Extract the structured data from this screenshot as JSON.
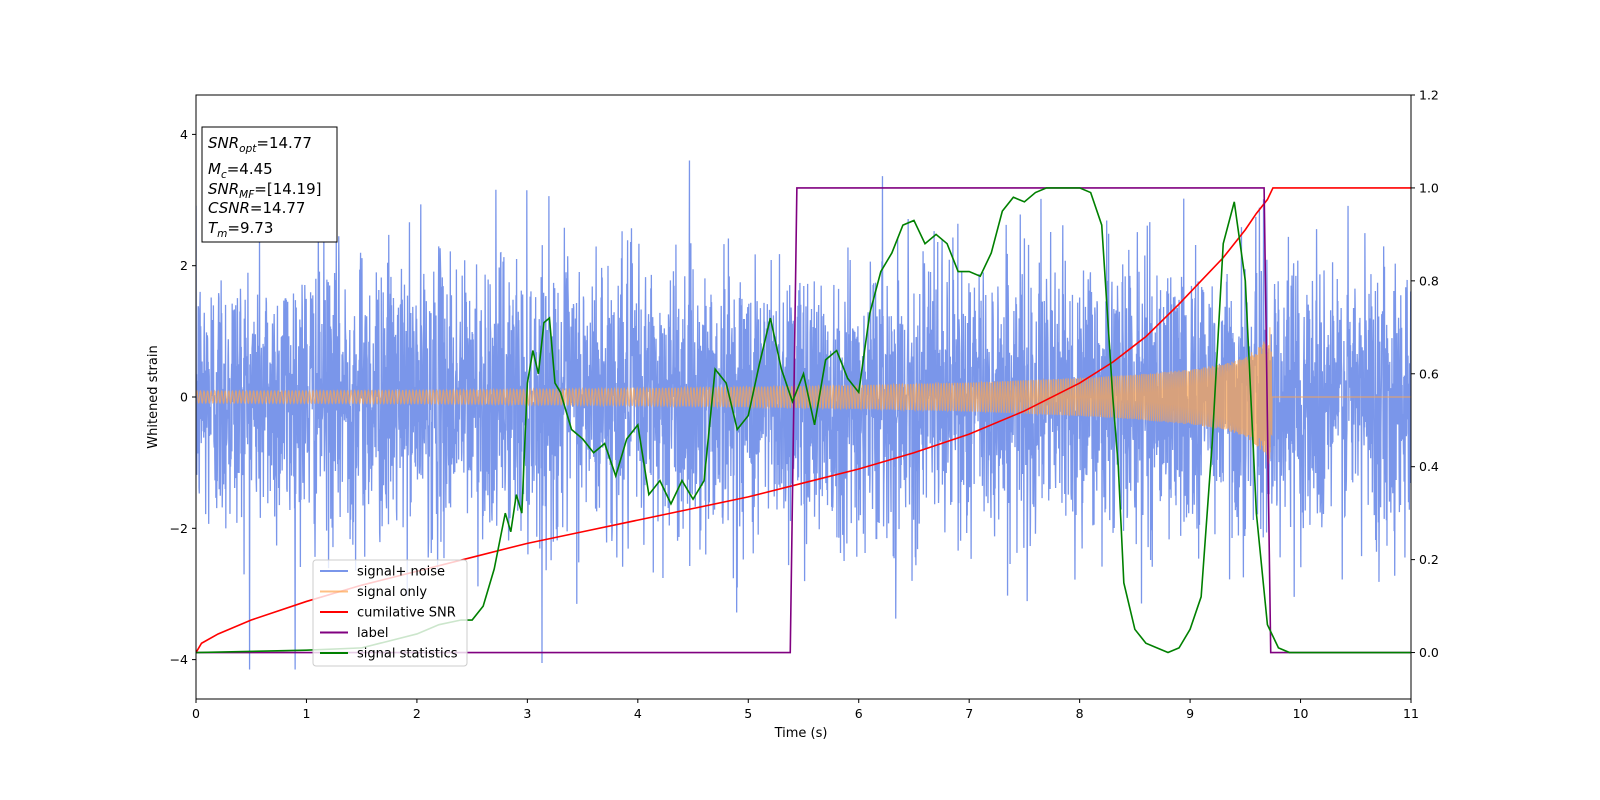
{
  "chart_data": {
    "type": "line",
    "title": "",
    "xlabel": "Time (s)",
    "ylabel": "Whitened strain",
    "y2label": "",
    "xlim": [
      0,
      11
    ],
    "ylim": [
      -4.6,
      4.6
    ],
    "y2lim": [
      -0.1,
      1.2
    ],
    "x_ticks": [
      0,
      1,
      2,
      3,
      4,
      5,
      6,
      7,
      8,
      9,
      10,
      11
    ],
    "y_ticks": [
      -4,
      -2,
      0,
      2,
      4
    ],
    "y2_ticks": [
      "0.0",
      "0.2",
      "0.4",
      "0.6",
      "0.8",
      "1.0",
      "1.2"
    ],
    "grid": false,
    "legend_position": "lower-left",
    "info_box": {
      "snr_opt": {
        "base": "SNR",
        "sub": "opt",
        "value": "=14.77"
      },
      "mc": {
        "base": "M",
        "sub": "c",
        "value": "=4.45"
      },
      "snr_mf": {
        "base": "SNR",
        "sub": "MF",
        "value": "=[14.19]"
      },
      "csnr": {
        "base": "CSNR",
        "value": "=14.77"
      },
      "tm": {
        "base": "T",
        "sub": "m",
        "value": "=9.73"
      }
    },
    "series": [
      {
        "name": "signal+ noise",
        "color": "#4169e1",
        "axis": "left",
        "description_style": "noise_std",
        "noise_std": 1.05,
        "x_range": [
          0,
          11
        ]
      },
      {
        "name": "signal only",
        "color": "#ffa54f",
        "axis": "left",
        "envelope_points": [
          [
            0,
            0.09
          ],
          [
            2,
            0.1
          ],
          [
            4,
            0.13
          ],
          [
            6,
            0.18
          ],
          [
            7,
            0.22
          ],
          [
            8,
            0.29
          ],
          [
            8.5,
            0.34
          ],
          [
            9,
            0.42
          ],
          [
            9.3,
            0.5
          ],
          [
            9.5,
            0.6
          ],
          [
            9.65,
            0.82
          ],
          [
            9.73,
            1.1
          ],
          [
            9.75,
            0
          ],
          [
            11,
            0
          ]
        ]
      },
      {
        "name": "cumilative SNR",
        "color": "#ff0000",
        "axis": "right",
        "x": [
          0,
          0.05,
          0.2,
          0.5,
          1,
          1.5,
          2,
          2.5,
          3,
          3.5,
          4,
          4.5,
          5,
          5.5,
          6,
          6.5,
          7,
          7.5,
          8,
          8.3,
          8.6,
          8.9,
          9.1,
          9.3,
          9.5,
          9.6,
          9.7,
          9.75,
          11
        ],
        "y": [
          0.0,
          0.02,
          0.04,
          0.07,
          0.11,
          0.145,
          0.175,
          0.205,
          0.235,
          0.26,
          0.285,
          0.31,
          0.335,
          0.365,
          0.395,
          0.43,
          0.47,
          0.52,
          0.58,
          0.625,
          0.68,
          0.75,
          0.8,
          0.85,
          0.91,
          0.945,
          0.975,
          1.0,
          1.0
        ]
      },
      {
        "name": "label",
        "color": "#800080",
        "axis": "right",
        "x": [
          0,
          5.38,
          5.44,
          9.67,
          9.73,
          11
        ],
        "y": [
          0,
          0,
          1,
          1,
          0,
          0
        ]
      },
      {
        "name": "signal statistics",
        "color": "#008000",
        "axis": "right",
        "x": [
          0,
          1,
          1.5,
          2,
          2.2,
          2.4,
          2.5,
          2.6,
          2.7,
          2.8,
          2.85,
          2.9,
          2.95,
          3.0,
          3.05,
          3.1,
          3.15,
          3.2,
          3.25,
          3.3,
          3.4,
          3.5,
          3.6,
          3.7,
          3.8,
          3.9,
          4.0,
          4.1,
          4.2,
          4.3,
          4.4,
          4.5,
          4.6,
          4.7,
          4.8,
          4.9,
          5.0,
          5.1,
          5.2,
          5.3,
          5.4,
          5.5,
          5.6,
          5.7,
          5.8,
          5.9,
          6.0,
          6.1,
          6.2,
          6.3,
          6.4,
          6.5,
          6.6,
          6.7,
          6.8,
          6.9,
          7.0,
          7.1,
          7.2,
          7.3,
          7.4,
          7.5,
          7.6,
          7.7,
          7.8,
          7.9,
          8.0,
          8.1,
          8.2,
          8.3,
          8.35,
          8.4,
          8.5,
          8.6,
          8.7,
          8.8,
          8.9,
          9.0,
          9.1,
          9.2,
          9.3,
          9.4,
          9.5,
          9.6,
          9.7,
          9.8,
          9.9,
          10,
          11
        ],
        "y": [
          0.0,
          0.005,
          0.01,
          0.04,
          0.06,
          0.07,
          0.07,
          0.1,
          0.18,
          0.3,
          0.26,
          0.34,
          0.3,
          0.58,
          0.65,
          0.6,
          0.71,
          0.72,
          0.58,
          0.56,
          0.48,
          0.46,
          0.43,
          0.45,
          0.38,
          0.46,
          0.49,
          0.34,
          0.37,
          0.32,
          0.37,
          0.33,
          0.37,
          0.61,
          0.58,
          0.48,
          0.51,
          0.62,
          0.72,
          0.61,
          0.54,
          0.6,
          0.49,
          0.63,
          0.65,
          0.59,
          0.56,
          0.73,
          0.82,
          0.86,
          0.92,
          0.93,
          0.88,
          0.9,
          0.88,
          0.82,
          0.82,
          0.81,
          0.86,
          0.95,
          0.98,
          0.97,
          0.99,
          1.0,
          1.0,
          1.0,
          1.0,
          0.99,
          0.92,
          0.55,
          0.4,
          0.15,
          0.05,
          0.02,
          0.01,
          0.0,
          0.01,
          0.05,
          0.12,
          0.45,
          0.88,
          0.97,
          0.8,
          0.3,
          0.06,
          0.01,
          0.0,
          0.0,
          0.0
        ]
      }
    ]
  }
}
